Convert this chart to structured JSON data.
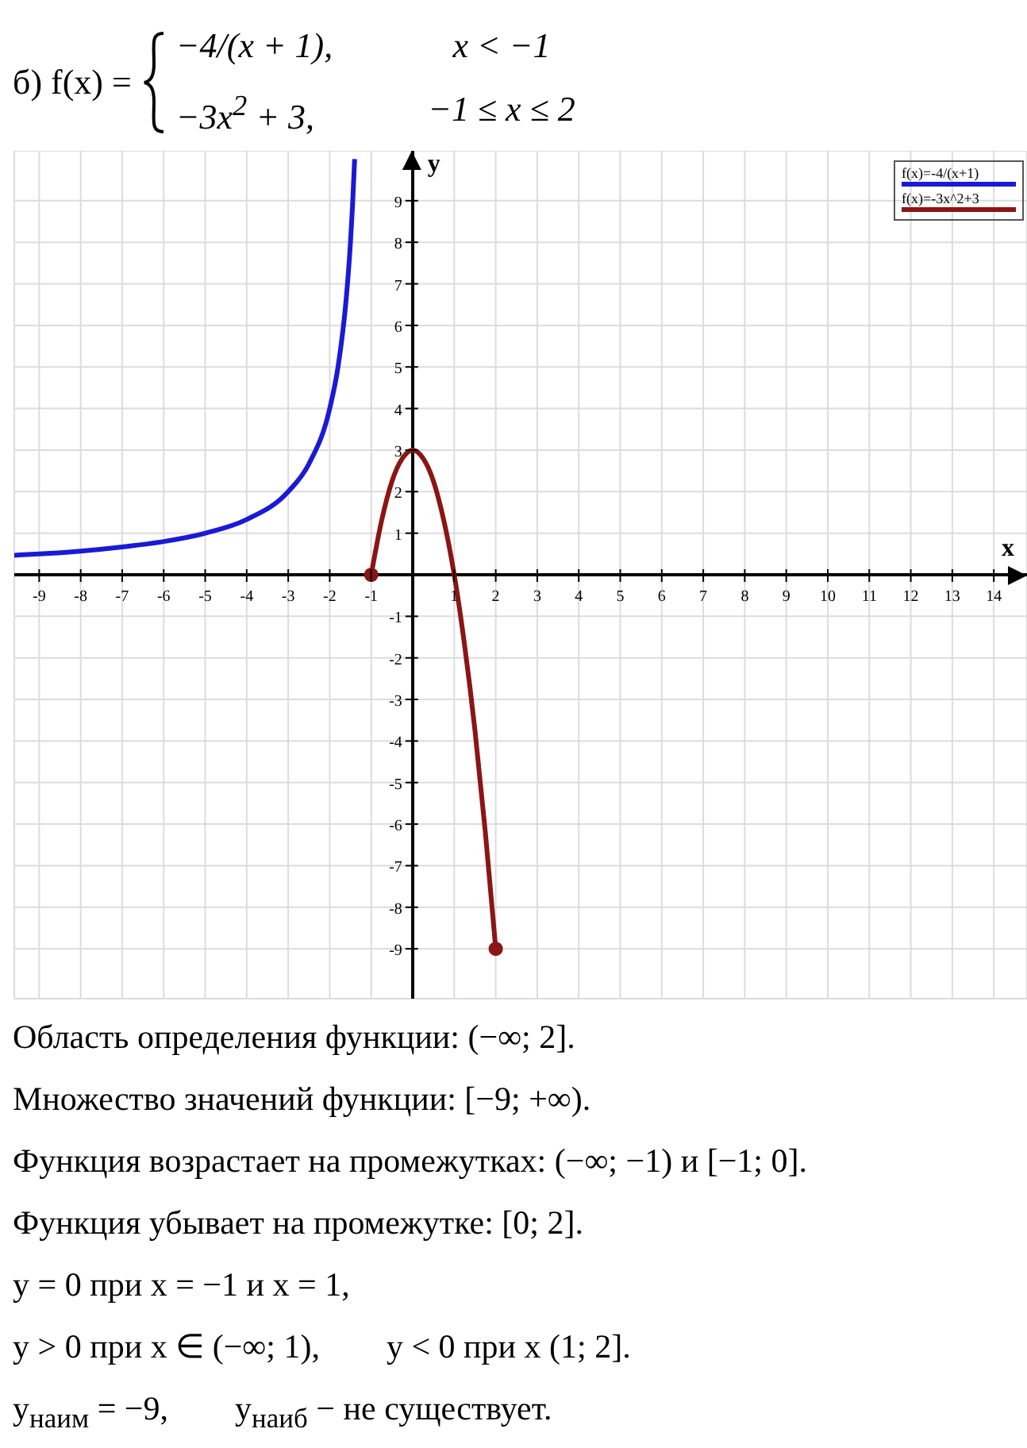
{
  "chart_data": {
    "type": "line",
    "title": "б) f(x) =",
    "xlabel": "x",
    "ylabel": "y",
    "annotations": [
      "−4/(x + 1),",
      "x < −1",
      "−3x$^{2}$ + 3,",
      "−1 ≤ x ≤ 2",
      "Область определения функции: (−∞; 2].",
      "Множество значений функции: [−9; +∞).",
      "Функция возрастает на промежутках: (−∞; −1) и [−1; 0].",
      "Функция убывает на промежутке: [0; 2].",
      "y = 0 при x = −1 и x = 1,",
      "y > 0 при x ∈ (−∞; 1),        y < 0 при x (1; 2].",
      "y$_{наим}$ = −9,        y$_{наиб}$ − не существует."
    ],
    "xlim": [
      -9.6,
      14.8
    ],
    "ylim": [
      -10.2,
      10.2
    ],
    "xticks": [
      -9,
      -8,
      -7,
      -6,
      -5,
      -4,
      -3,
      -2,
      -1,
      {
        "value": 0,
        "label": null
      },
      1,
      2,
      3,
      4,
      5,
      6,
      7,
      8,
      9,
      10,
      11,
      12,
      13,
      14
    ],
    "yticks": [
      -9,
      -8,
      -7,
      -6,
      -5,
      -4,
      -3,
      -2,
      -1,
      {
        "value": 0,
        "label": null
      },
      1,
      2,
      3,
      4,
      5,
      6,
      7,
      8,
      9
    ],
    "grid": true,
    "legend": "top right",
    "marker": "none",
    "line_style": "solid",
    "series": [
      {
        "name": "f(x)=-4/(x+1)",
        "color": "#1a1ad6",
        "x": [
          -9.6,
          -9,
          -8,
          -7,
          -6,
          -5,
          -4,
          -3,
          -2.5,
          -2,
          -1.8,
          -1.6,
          -1.5,
          -1.45,
          -1.4
        ],
        "values": [
          0.47,
          0.5,
          0.57,
          0.67,
          0.8,
          1,
          1.33,
          2,
          2.67,
          4,
          5,
          6.67,
          8,
          8.89,
          10
        ]
      },
      {
        "name": "f(x)=-3x^2+3",
        "color": "#8b1515",
        "x": [
          -1,
          -0.75,
          -0.5,
          -0.25,
          0,
          0.25,
          0.5,
          0.75,
          1,
          1.25,
          1.5,
          1.75,
          2
        ],
        "values": [
          0,
          1.3,
          2.25,
          2.8,
          3,
          2.8,
          2.25,
          1.3,
          0,
          -1.7,
          -3.75,
          -6.2,
          -9
        ]
      },
      {
        "type": "scatter",
        "marker": "circle",
        "color": "#8b1515",
        "x": [
          -1,
          2
        ],
        "values": [
          0,
          -9
        ]
      }
    ]
  }
}
